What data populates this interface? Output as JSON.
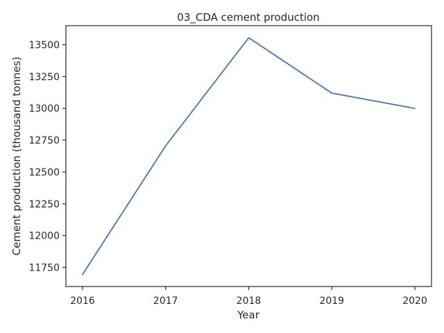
{
  "chart_data": {
    "type": "line",
    "title": "03_CDA cement production",
    "xlabel": "Year",
    "ylabel": "Cement production (thousand tonnes)",
    "x": [
      2016,
      2017,
      2018,
      2019,
      2020
    ],
    "series": [
      {
        "values": [
          11695,
          12705,
          13555,
          13120,
          13000
        ],
        "color": "#4c72b0"
      }
    ],
    "xlim": [
      2015.8,
      2020.2
    ],
    "ylim": [
      11600,
      13650
    ],
    "x_ticks": [
      "2016",
      "2017",
      "2018",
      "2019",
      "2020"
    ],
    "y_ticks": [
      11750,
      12000,
      12250,
      12500,
      12750,
      13000,
      13250,
      13500
    ],
    "y_tick_labels": [
      "11750",
      "12000",
      "12250",
      "12500",
      "12750",
      "13000",
      "13250",
      "13500"
    ],
    "grid": false,
    "legend": "none"
  }
}
